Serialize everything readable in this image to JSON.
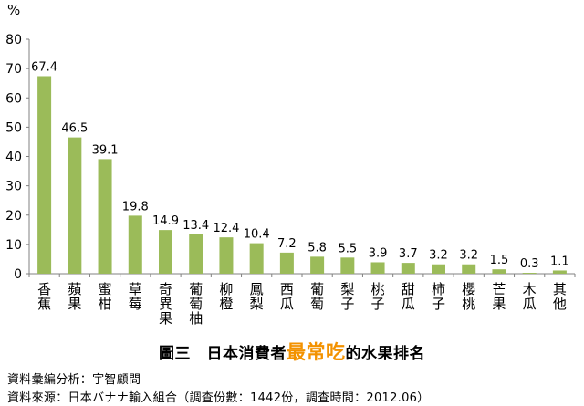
{
  "chart_data": {
    "type": "bar",
    "unit_label": "%",
    "ylim": [
      0,
      80
    ],
    "yticks": [
      0,
      10,
      20,
      30,
      40,
      50,
      60,
      70,
      80
    ],
    "grid": false,
    "legend": "none",
    "bar_color": "#9bbb59",
    "categories": [
      "香蕉",
      "蘋果",
      "蜜柑",
      "草莓",
      "奇異果",
      "葡萄柚",
      "柳橙",
      "鳳梨",
      "西瓜",
      "葡萄",
      "梨子",
      "桃子",
      "甜瓜",
      "柿子",
      "櫻桃",
      "芒果",
      "木瓜",
      "其他"
    ],
    "values": [
      67.4,
      46.5,
      39.1,
      19.8,
      14.9,
      13.4,
      12.4,
      10.4,
      7.2,
      5.8,
      5.5,
      3.9,
      3.7,
      3.2,
      3.2,
      1.5,
      0.3,
      1.1
    ],
    "value_labels": [
      "67.4",
      "46.5",
      "39.1",
      "19.8",
      "14.9",
      "13.4",
      "12.4",
      "10.4",
      "7.2",
      "5.8",
      "5.5",
      "3.9",
      "3.7",
      "3.2",
      "3.2",
      "1.5",
      "0.3",
      "1.1"
    ]
  },
  "caption": {
    "prefix": "圖三　日本消費者",
    "highlight": "最常吃",
    "suffix": "的水果排名",
    "highlight_color": "#f39200"
  },
  "source": {
    "line1": "資料彙編分析：宇智顧問",
    "line2": "資料來源：日本バナナ輸入組合（調查份數：1442份，調查時間：2012.06）"
  }
}
